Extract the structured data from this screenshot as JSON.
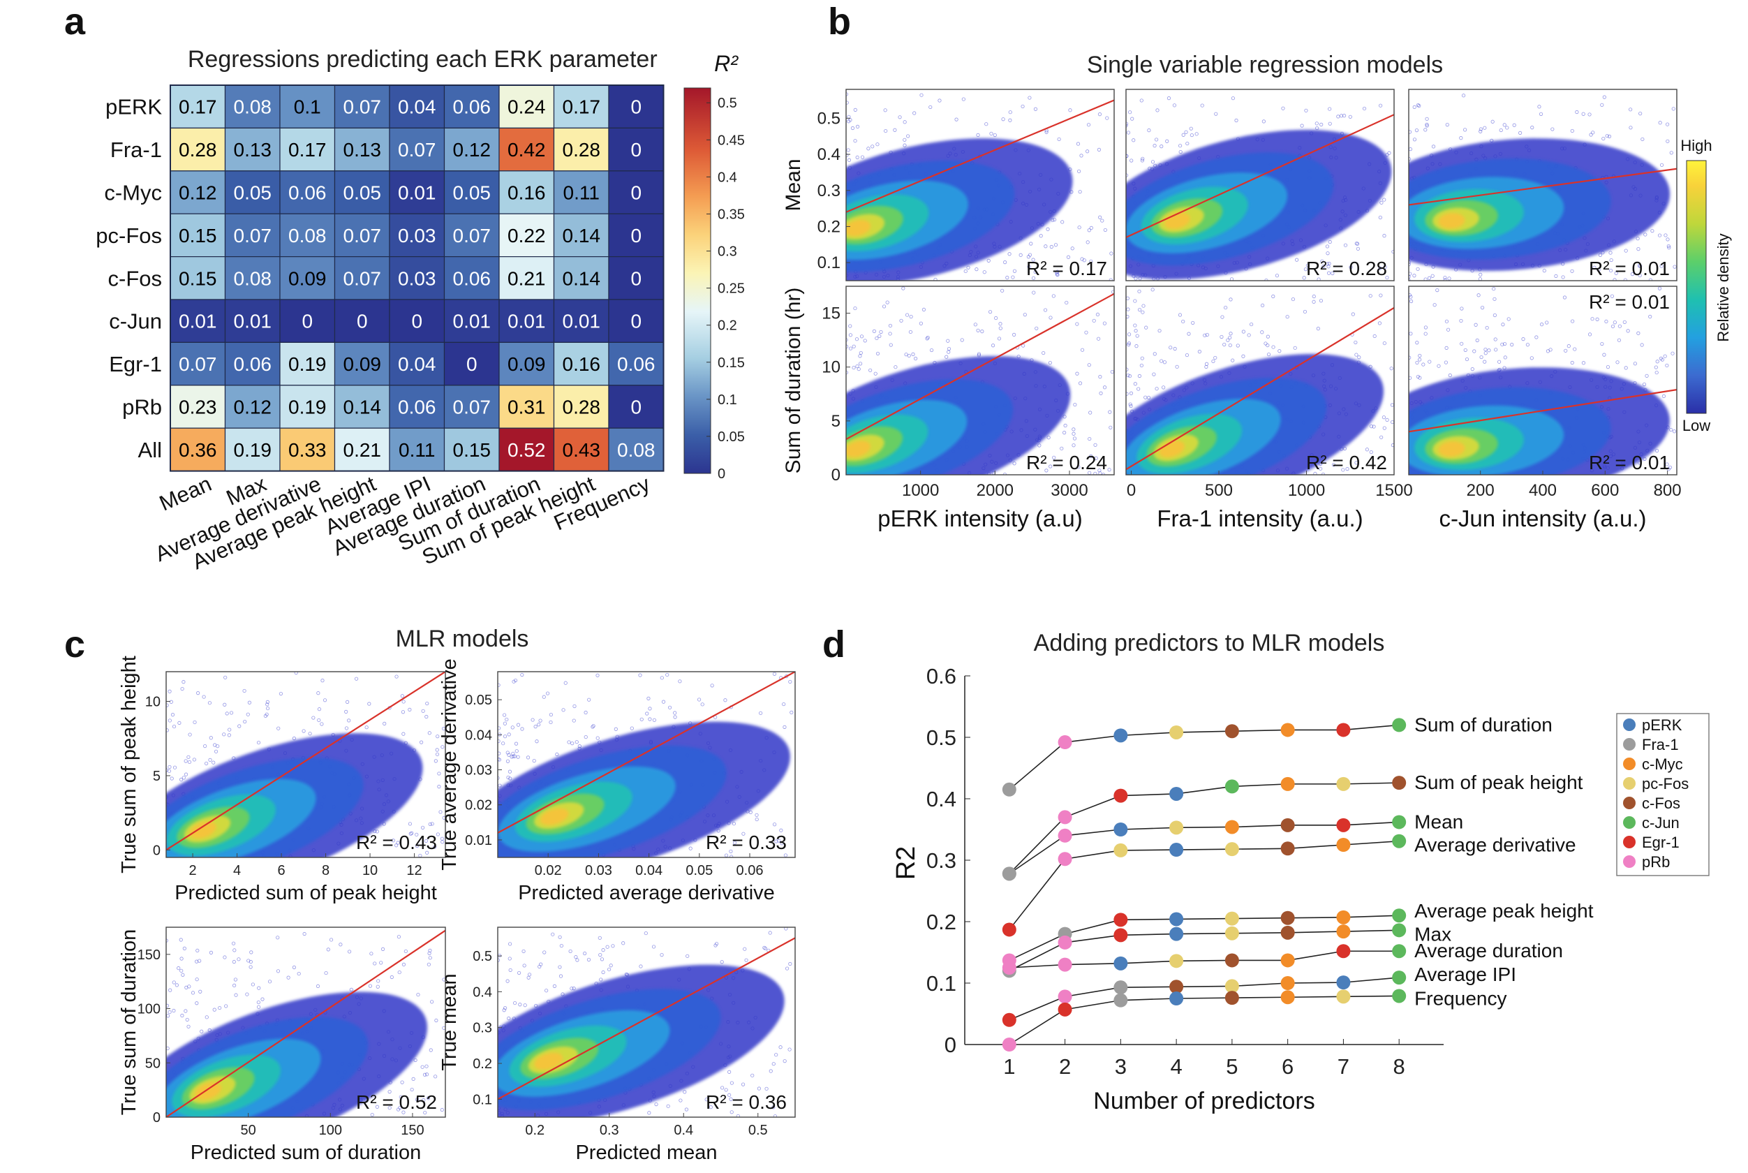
{
  "panel_letters": {
    "a": "a",
    "b": "b",
    "c": "c",
    "d": "d"
  },
  "chart_data": [
    {
      "id": "heatmap_a",
      "type": "heatmap",
      "title": "Regressions predicting each ERK parameter",
      "colorbar_label": "R²",
      "colorbar_ticks": [
        "0",
        "0.05",
        "0.1",
        "0.15",
        "0.2",
        "0.25",
        "0.3",
        "0.35",
        "0.4",
        "0.45",
        "0.5"
      ],
      "colorbar_range": [
        0,
        0.52
      ],
      "rows": [
        "pERK",
        "Fra-1",
        "c-Myc",
        "pc-Fos",
        "c-Fos",
        "c-Jun",
        "Egr-1",
        "pRb",
        "All"
      ],
      "columns": [
        "Mean",
        "Max",
        "Average derivative",
        "Average peak height",
        "Average IPI",
        "Average duration",
        "Sum of duration",
        "Sum of peak height",
        "Frequency"
      ],
      "values": [
        [
          "0.17",
          "0.08",
          "0.1",
          "0.07",
          "0.04",
          "0.06",
          "0.24",
          "0.17",
          "0"
        ],
        [
          "0.28",
          "0.13",
          "0.17",
          "0.13",
          "0.07",
          "0.12",
          "0.42",
          "0.28",
          "0"
        ],
        [
          "0.12",
          "0.05",
          "0.06",
          "0.05",
          "0.01",
          "0.05",
          "0.16",
          "0.11",
          "0"
        ],
        [
          "0.15",
          "0.07",
          "0.08",
          "0.07",
          "0.03",
          "0.07",
          "0.22",
          "0.14",
          "0"
        ],
        [
          "0.15",
          "0.08",
          "0.09",
          "0.07",
          "0.03",
          "0.06",
          "0.21",
          "0.14",
          "0"
        ],
        [
          "0.01",
          "0.01",
          "0",
          "0",
          "0",
          "0.01",
          "0.01",
          "0.01",
          "0"
        ],
        [
          "0.07",
          "0.06",
          "0.19",
          "0.09",
          "0.04",
          "0",
          "0.09",
          "0.16",
          "0.06"
        ],
        [
          "0.23",
          "0.12",
          "0.19",
          "0.14",
          "0.06",
          "0.07",
          "0.31",
          "0.28",
          "0"
        ],
        [
          "0.36",
          "0.19",
          "0.33",
          "0.21",
          "0.11",
          "0.15",
          "0.52",
          "0.43",
          "0.08"
        ]
      ]
    },
    {
      "id": "scatter_b",
      "type": "scatter",
      "title": "Single variable regression models",
      "colorbar": {
        "high": "High",
        "low": "Low",
        "label": "Relative density"
      },
      "row_ylabels": [
        "Mean",
        "Sum of duration (hr)"
      ],
      "col_xlabels": [
        "pERK intensity (a.u)",
        "Fra-1 intensity (a.u.)",
        "c-Jun intensity (a.u.)"
      ],
      "panels": [
        {
          "row": 0,
          "col": 0,
          "xlim": [
            0,
            3600
          ],
          "ylim": [
            0.05,
            0.58
          ],
          "xticks": [],
          "yticks": [
            "0.1",
            "0.2",
            "0.3",
            "0.4",
            "0.5"
          ],
          "r2": "R² = 0.17",
          "fit": [
            [
              0,
              0.24
            ],
            [
              3600,
              0.55
            ]
          ],
          "blob": [
            80,
            0.19
          ]
        },
        {
          "row": 0,
          "col": 1,
          "xlim": [
            -30,
            1500
          ],
          "ylim": [
            0.05,
            0.58
          ],
          "xticks": [],
          "yticks": [],
          "r2": "R² = 0.28",
          "fit": [
            [
              -30,
              0.17
            ],
            [
              1500,
              0.51
            ]
          ],
          "blob": [
            230,
            0.21
          ]
        },
        {
          "row": 0,
          "col": 2,
          "xlim": [
            -30,
            830
          ],
          "ylim": [
            0.05,
            0.58
          ],
          "xticks": [],
          "yticks": [],
          "r2": "R² = 0.01",
          "fit": [
            [
              -30,
              0.26
            ],
            [
              830,
              0.36
            ]
          ],
          "blob": [
            90,
            0.21
          ]
        },
        {
          "row": 1,
          "col": 0,
          "xlim": [
            0,
            3600
          ],
          "ylim": [
            0,
            17.5
          ],
          "xticks": [
            "1000",
            "2000",
            "3000"
          ],
          "yticks": [
            "0",
            "5",
            "10",
            "15"
          ],
          "r2": "R² = 0.24",
          "fit": [
            [
              0,
              3.3
            ],
            [
              3600,
              16.8
            ]
          ],
          "blob": [
            80,
            2.2
          ]
        },
        {
          "row": 1,
          "col": 1,
          "xlim": [
            -30,
            1500
          ],
          "ylim": [
            0,
            17.5
          ],
          "xticks": [
            "0",
            "500",
            "1000",
            "1500"
          ],
          "yticks": [],
          "r2": "R² = 0.42",
          "fit": [
            [
              -30,
              0.5
            ],
            [
              1500,
              15.5
            ]
          ],
          "blob": [
            200,
            2.2
          ]
        },
        {
          "row": 1,
          "col": 2,
          "xlim": [
            -30,
            830
          ],
          "ylim": [
            0,
            17.5
          ],
          "xticks": [
            "200",
            "400",
            "600",
            "800"
          ],
          "yticks": [],
          "r2": "R² = 0.01",
          "r2_top": "R² = 0.01",
          "fit": [
            [
              -30,
              4.0
            ],
            [
              830,
              7.9
            ]
          ],
          "blob": [
            90,
            2.2
          ]
        }
      ]
    },
    {
      "id": "scatter_c",
      "type": "scatter",
      "title": "MLR models",
      "panels": [
        {
          "xlabel": "Predicted sum of peak height",
          "ylabel": "True sum of peak height",
          "xlim": [
            0.8,
            13.4
          ],
          "ylim": [
            -0.5,
            12
          ],
          "xticks": [
            "2",
            "4",
            "6",
            "8",
            "10",
            "12"
          ],
          "yticks": [
            "0",
            "5",
            "10"
          ],
          "r2": "R² = 0.43",
          "fit": [
            [
              0.8,
              0.0
            ],
            [
              13.4,
              12
            ]
          ],
          "blob": [
            2.2,
            1.2
          ]
        },
        {
          "xlabel": "Predicted average derivative",
          "ylabel": "True average derivative",
          "xlim": [
            0.01,
            0.069
          ],
          "ylim": [
            0.005,
            0.058
          ],
          "xticks": [
            "0.02",
            "0.03",
            "0.04",
            "0.05",
            "0.06"
          ],
          "yticks": [
            "0.01",
            "0.02",
            "0.03",
            "0.04",
            "0.05"
          ],
          "r2": "R² = 0.33",
          "fit": [
            [
              0.01,
              0.012
            ],
            [
              0.069,
              0.058
            ]
          ],
          "blob": [
            0.02,
            0.016
          ]
        },
        {
          "xlabel": "Predicted sum of duration",
          "ylabel": "True sum of duration",
          "xlim": [
            0,
            170
          ],
          "ylim": [
            0,
            175
          ],
          "xticks": [
            "50",
            "100",
            "150"
          ],
          "yticks": [
            "0",
            "50",
            "100",
            "150"
          ],
          "r2": "R² = 0.52",
          "fit": [
            [
              0,
              0
            ],
            [
              170,
              172
            ]
          ],
          "blob": [
            22,
            22
          ]
        },
        {
          "xlabel": "Predicted mean",
          "ylabel": "True mean",
          "xlim": [
            0.15,
            0.55
          ],
          "ylim": [
            0.05,
            0.58
          ],
          "xticks": [
            "0.2",
            "0.3",
            "0.4",
            "0.5"
          ],
          "yticks": [
            "0.1",
            "0.2",
            "0.3",
            "0.4",
            "0.5"
          ],
          "r2": "R² = 0.36",
          "fit": [
            [
              0.15,
              0.1
            ],
            [
              0.55,
              0.55
            ]
          ],
          "blob": [
            0.21,
            0.2
          ]
        }
      ]
    },
    {
      "id": "line_d",
      "type": "line",
      "title": "Adding predictors to MLR models",
      "xlabel": "Number of predictors",
      "ylabel": "R2",
      "x": [
        1,
        2,
        3,
        4,
        5,
        6,
        7,
        8
      ],
      "xlim": [
        0.2,
        8.8
      ],
      "ylim": [
        0,
        0.6
      ],
      "yticks": [
        "0",
        "0.1",
        "0.2",
        "0.3",
        "0.4",
        "0.5",
        "0.6"
      ],
      "legend_position": "top-right",
      "predictors": [
        "pERK",
        "Fra-1",
        "c-Myc",
        "pc-Fos",
        "c-Fos",
        "c-Jun",
        "Egr-1",
        "pRb"
      ],
      "colors": {
        "pERK": "#4a7ebb",
        "Fra-1": "#9c9c9c",
        "c-Myc": "#f28c28",
        "pc-Fos": "#e6cf6f",
        "c-Fos": "#a0522d",
        "c-Jun": "#5cb85c",
        "Egr-1": "#d9322a",
        "pRb": "#ef80c4"
      },
      "series": [
        {
          "name": "Sum of duration",
          "values": [
            0.415,
            0.492,
            0.503,
            0.508,
            0.51,
            0.512,
            0.512,
            0.52
          ],
          "markers": [
            "Fra-1",
            "pRb",
            "pERK",
            "pc-Fos",
            "c-Fos",
            "c-Myc",
            "Egr-1",
            "c-Jun"
          ]
        },
        {
          "name": "Sum of peak height",
          "values": [
            0.278,
            0.37,
            0.405,
            0.408,
            0.42,
            0.424,
            0.424,
            0.426
          ],
          "markers": [
            "Fra-1",
            "pRb",
            "Egr-1",
            "pERK",
            "c-Jun",
            "c-Myc",
            "pc-Fos",
            "c-Fos"
          ]
        },
        {
          "name": "Mean",
          "values": [
            0.278,
            0.34,
            0.35,
            0.353,
            0.354,
            0.357,
            0.357,
            0.362
          ],
          "markers": [
            "Fra-1",
            "pRb",
            "pERK",
            "pc-Fos",
            "c-Myc",
            "c-Fos",
            "Egr-1",
            "c-Jun"
          ]
        },
        {
          "name": "Average derivative",
          "values": [
            0.187,
            0.302,
            0.316,
            0.317,
            0.318,
            0.319,
            0.325,
            0.331
          ],
          "markers": [
            "Egr-1",
            "pRb",
            "pc-Fos",
            "pERK",
            "pc-Fos",
            "c-Fos",
            "c-Myc",
            "c-Jun"
          ]
        },
        {
          "name": "Average peak height",
          "values": [
            0.137,
            0.18,
            0.203,
            0.204,
            0.205,
            0.206,
            0.207,
            0.21
          ],
          "markers": [
            "pRb",
            "Fra-1",
            "Egr-1",
            "pERK",
            "pc-Fos",
            "c-Fos",
            "c-Myc",
            "c-Jun"
          ]
        },
        {
          "name": "Max",
          "values": [
            0.12,
            0.166,
            0.178,
            0.18,
            0.181,
            0.182,
            0.184,
            0.186
          ],
          "markers": [
            "Fra-1",
            "pRb",
            "Egr-1",
            "pERK",
            "pc-Fos",
            "c-Fos",
            "c-Myc",
            "c-Jun"
          ]
        },
        {
          "name": "Average duration",
          "values": [
            0.125,
            0.13,
            0.132,
            0.136,
            0.137,
            0.137,
            0.152,
            0.152
          ],
          "markers": [
            "pRb",
            "pRb",
            "pERK",
            "pc-Fos",
            "c-Fos",
            "c-Myc",
            "Egr-1",
            "c-Jun"
          ]
        },
        {
          "name": "Average IPI",
          "values": [
            0.04,
            0.078,
            0.093,
            0.094,
            0.095,
            0.1,
            0.101,
            0.109
          ],
          "markers": [
            "Egr-1",
            "pRb",
            "Fra-1",
            "c-Fos",
            "pc-Fos",
            "c-Myc",
            "pERK",
            "c-Jun"
          ]
        },
        {
          "name": "Frequency",
          "values": [
            0.0,
            0.057,
            0.072,
            0.075,
            0.076,
            0.077,
            0.078,
            0.079
          ],
          "markers": [
            "pRb",
            "Egr-1",
            "Fra-1",
            "pERK",
            "c-Fos",
            "c-Myc",
            "pc-Fos",
            "c-Jun"
          ]
        }
      ]
    }
  ]
}
